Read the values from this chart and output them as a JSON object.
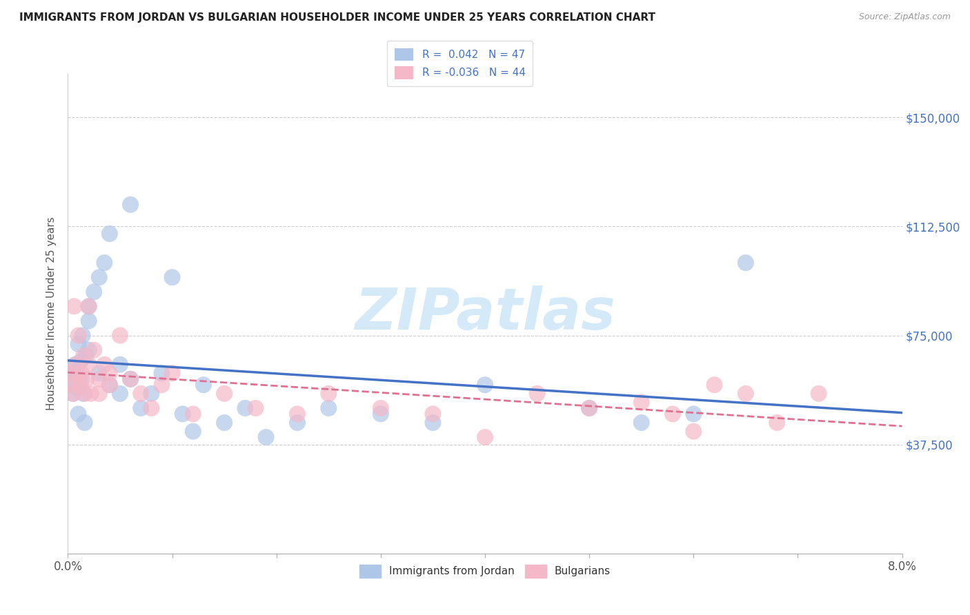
{
  "title": "IMMIGRANTS FROM JORDAN VS BULGARIAN HOUSEHOLDER INCOME UNDER 25 YEARS CORRELATION CHART",
  "source": "Source: ZipAtlas.com",
  "ylabel": "Householder Income Under 25 years",
  "yticks": [
    0,
    37500,
    75000,
    112500,
    150000
  ],
  "ytick_labels": [
    "",
    "$37,500",
    "$75,000",
    "$112,500",
    "$150,000"
  ],
  "xmin": 0.0,
  "xmax": 0.08,
  "ymin": 0,
  "ymax": 165000,
  "series1_label": "Immigrants from Jordan",
  "series2_label": "Bulgarians",
  "series1_color": "#aec6e8",
  "series2_color": "#f4b8c8",
  "series1_line_color": "#4472c4",
  "series2_line_color": "#e07090",
  "watermark": "ZIPatlas",
  "watermark_color": "#d5eaf8",
  "jordan_x": [
    0.0002,
    0.0003,
    0.0005,
    0.0006,
    0.0007,
    0.0008,
    0.0009,
    0.001,
    0.001,
    0.0012,
    0.0013,
    0.0014,
    0.0015,
    0.0016,
    0.0017,
    0.002,
    0.002,
    0.002,
    0.0025,
    0.003,
    0.003,
    0.0035,
    0.004,
    0.004,
    0.005,
    0.005,
    0.006,
    0.006,
    0.007,
    0.008,
    0.009,
    0.01,
    0.011,
    0.012,
    0.013,
    0.015,
    0.017,
    0.019,
    0.022,
    0.025,
    0.03,
    0.035,
    0.04,
    0.05,
    0.055,
    0.06,
    0.065
  ],
  "jordan_y": [
    62000,
    58000,
    55000,
    60000,
    65000,
    63000,
    57000,
    48000,
    72000,
    66000,
    60000,
    75000,
    55000,
    45000,
    68000,
    80000,
    85000,
    70000,
    90000,
    95000,
    62000,
    100000,
    110000,
    58000,
    55000,
    65000,
    120000,
    60000,
    50000,
    55000,
    62000,
    95000,
    48000,
    42000,
    58000,
    45000,
    50000,
    40000,
    45000,
    50000,
    48000,
    45000,
    58000,
    50000,
    45000,
    48000,
    100000
  ],
  "bulgarian_x": [
    0.0002,
    0.0004,
    0.0005,
    0.0006,
    0.0008,
    0.001,
    0.001,
    0.0012,
    0.0013,
    0.0015,
    0.0016,
    0.0018,
    0.002,
    0.002,
    0.0022,
    0.0025,
    0.003,
    0.003,
    0.0035,
    0.004,
    0.004,
    0.005,
    0.006,
    0.007,
    0.008,
    0.009,
    0.01,
    0.012,
    0.015,
    0.018,
    0.022,
    0.025,
    0.03,
    0.035,
    0.04,
    0.045,
    0.05,
    0.055,
    0.058,
    0.06,
    0.062,
    0.065,
    0.068,
    0.072
  ],
  "bulgarian_y": [
    62000,
    58000,
    55000,
    85000,
    65000,
    60000,
    75000,
    58000,
    62000,
    68000,
    55000,
    60000,
    65000,
    85000,
    55000,
    70000,
    60000,
    55000,
    65000,
    58000,
    62000,
    75000,
    60000,
    55000,
    50000,
    58000,
    62000,
    48000,
    55000,
    50000,
    48000,
    55000,
    50000,
    48000,
    40000,
    55000,
    50000,
    52000,
    48000,
    42000,
    58000,
    55000,
    45000,
    55000
  ]
}
